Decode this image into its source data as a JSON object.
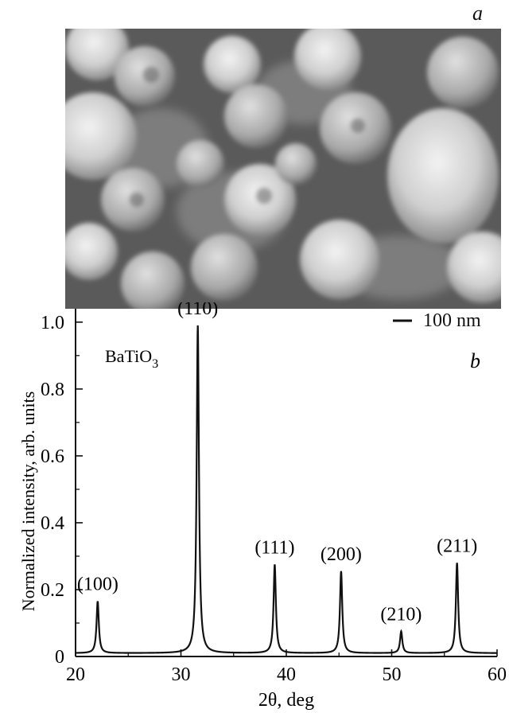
{
  "panel_a": {
    "letter": "a",
    "scale_bar_label": "100 nm"
  },
  "chart_data": {
    "type": "line",
    "panel_letter": "b",
    "sample_label_base": "BaTiO",
    "sample_label_sub": "3",
    "xlabel": "2θ, deg",
    "ylabel": "Normalized intensity, arb. units",
    "xlim": [
      20,
      60
    ],
    "ylim": [
      0,
      1.04
    ],
    "xticks": [
      20,
      30,
      40,
      50,
      60
    ],
    "yticks": [
      0,
      0.2,
      0.4,
      0.6,
      0.8,
      1.0
    ],
    "ytick_labels": [
      "0",
      "0.2",
      "0.4",
      "0.6",
      "0.8",
      "1.0"
    ],
    "baseline": 0.01,
    "peaks": [
      {
        "x": 22.1,
        "y": 0.165,
        "label": "(100)"
      },
      {
        "x": 31.6,
        "y": 0.99,
        "label": "(110)"
      },
      {
        "x": 38.9,
        "y": 0.275,
        "label": "(111)"
      },
      {
        "x": 45.2,
        "y": 0.255,
        "label": "(200)"
      },
      {
        "x": 50.9,
        "y": 0.075,
        "label": "(210)"
      },
      {
        "x": 56.2,
        "y": 0.28,
        "label": "(211)"
      }
    ],
    "grid": false,
    "line_color": "#111111"
  }
}
